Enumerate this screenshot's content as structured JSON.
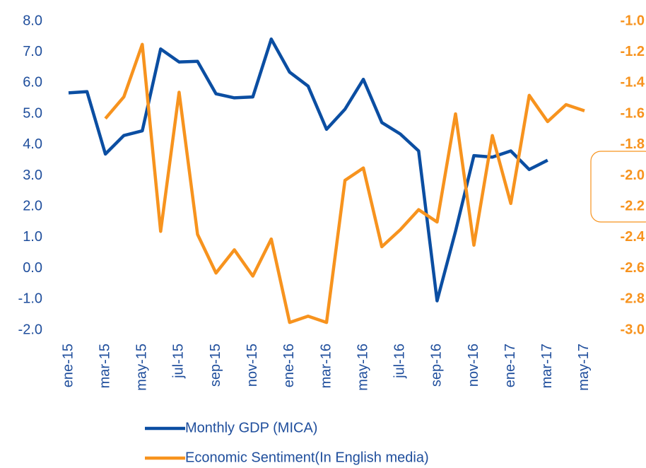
{
  "chart_data": {
    "type": "line",
    "categories": [
      "ene-15",
      null,
      "mar-15",
      null,
      "may-15",
      null,
      "jul-15",
      null,
      "sep-15",
      null,
      "nov-15",
      null,
      "ene-16",
      null,
      "mar-16",
      null,
      "may-16",
      null,
      "jul-16",
      null,
      "sep-16",
      null,
      "nov-16",
      null,
      "ene-17",
      null,
      "mar-17",
      null,
      "may-17"
    ],
    "series": [
      {
        "name": "Monthly GDP (MICA)",
        "color": "#0b4ea2",
        "values": [
          5.68,
          5.72,
          3.7,
          4.3,
          4.45,
          7.1,
          6.68,
          6.7,
          5.65,
          5.52,
          5.55,
          7.42,
          6.35,
          5.9,
          4.5,
          5.15,
          6.12,
          4.72,
          4.35,
          3.8,
          -1.05,
          1.2,
          3.65,
          3.6,
          3.8,
          3.2,
          3.5,
          null,
          null
        ]
      },
      {
        "name": "Economic Sentiment(In English media)",
        "color": "#f7931e",
        "axis": "y2",
        "values": [
          null,
          null,
          -1.63,
          -1.49,
          -1.15,
          -2.36,
          -1.46,
          -2.38,
          -2.63,
          -2.48,
          -2.65,
          -2.41,
          -2.95,
          -2.91,
          -2.95,
          -2.03,
          -1.95,
          -2.46,
          -2.35,
          -2.22,
          -2.3,
          -1.6,
          -2.45,
          -1.74,
          -2.18,
          -1.48,
          -1.65,
          -1.54,
          -1.58
        ]
      }
    ],
    "ylim": [
      -2,
      8
    ],
    "yticks": [
      {
        "value": -2,
        "label": "-2.0"
      },
      {
        "value": -1,
        "label": "-1.0"
      },
      {
        "value": 0,
        "label": "0.0"
      },
      {
        "value": 1,
        "label": "1.0"
      },
      {
        "value": 2,
        "label": "2.0"
      },
      {
        "value": 3,
        "label": "3.0"
      },
      {
        "value": 4,
        "label": "4.0"
      },
      {
        "value": 5,
        "label": "5.0"
      },
      {
        "value": 6,
        "label": "6.0"
      },
      {
        "value": 7,
        "label": "7.0"
      },
      {
        "value": 8,
        "label": "8.0"
      }
    ],
    "y2lim": [
      -3,
      -1
    ],
    "y2ticks": [
      {
        "value": -3,
        "label": "-3.0"
      },
      {
        "value": -2.8,
        "label": "-2.8"
      },
      {
        "value": -2.6,
        "label": "-2.6"
      },
      {
        "value": -2.4,
        "label": "-2.4"
      },
      {
        "value": -2.2,
        "label": "-2.2"
      },
      {
        "value": -2,
        "label": "-2.0"
      },
      {
        "value": -1.8,
        "label": "-1.8"
      },
      {
        "value": -1.6,
        "label": "-1.6"
      },
      {
        "value": -1.4,
        "label": "-1.4"
      },
      {
        "value": -1.2,
        "label": "-1.2"
      },
      {
        "value": -1,
        "label": "-1.0"
      }
    ],
    "legend": "bottom"
  }
}
